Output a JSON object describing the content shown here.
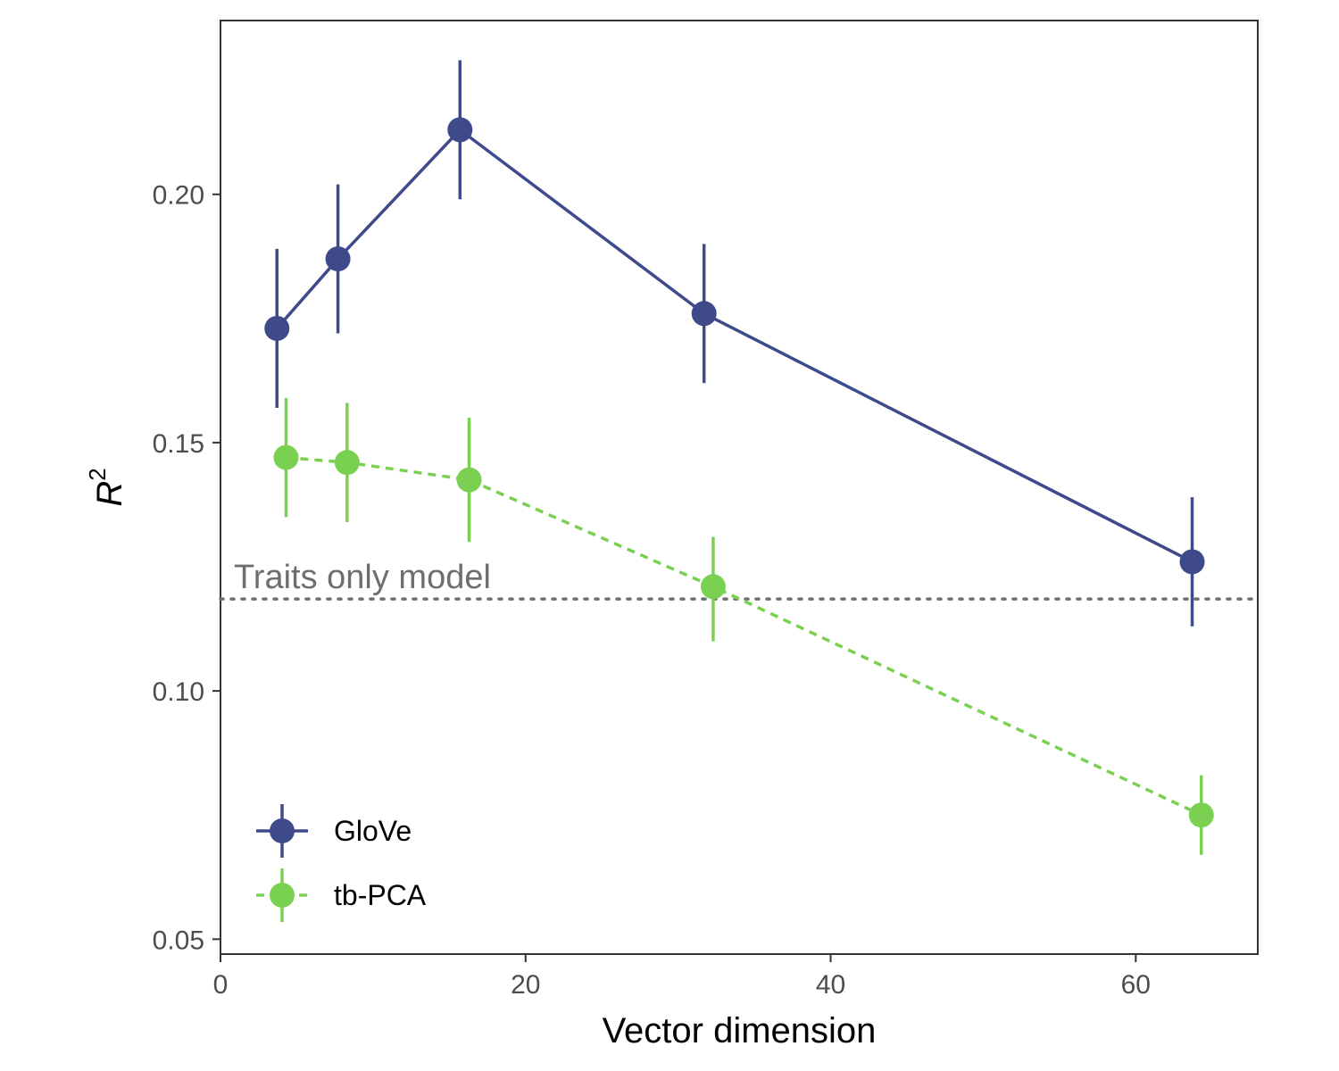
{
  "chart_data": {
    "type": "line",
    "title": "",
    "xlabel": "Vector dimension",
    "ylabel": "R",
    "ylabel_superscript": "2",
    "xlim": [
      0,
      68
    ],
    "ylim": [
      0.047,
      0.235
    ],
    "x_ticks": [
      0,
      20,
      40,
      60
    ],
    "x_tick_labels": [
      "0",
      "20",
      "40",
      "60"
    ],
    "y_ticks": [
      0.05,
      0.1,
      0.15,
      0.2
    ],
    "y_tick_labels": [
      "0.05",
      "0.10",
      "0.15",
      "0.20"
    ],
    "grid": false,
    "legend_position": "bottom-left",
    "series": [
      {
        "name": "GloVe",
        "color": "#3e4a89",
        "line_style": "solid",
        "x": [
          3.7,
          7.7,
          15.7,
          31.7,
          63.7
        ],
        "y": [
          0.173,
          0.187,
          0.213,
          0.176,
          0.126
        ],
        "y_lower": [
          0.157,
          0.172,
          0.199,
          0.162,
          0.113
        ],
        "y_upper": [
          0.189,
          0.202,
          0.227,
          0.19,
          0.139
        ]
      },
      {
        "name": "tb-PCA",
        "color": "#7ad151",
        "line_style": "dashed",
        "x": [
          4.3,
          8.3,
          16.3,
          32.3,
          64.3
        ],
        "y": [
          0.147,
          0.146,
          0.1425,
          0.121,
          0.075
        ],
        "y_lower": [
          0.135,
          0.134,
          0.13,
          0.11,
          0.067
        ],
        "y_upper": [
          0.159,
          0.158,
          0.155,
          0.131,
          0.083
        ]
      }
    ],
    "reference_line": {
      "label": "Traits only model",
      "y": 0.1185,
      "color": "#6e6e6e",
      "line_style": "dotted"
    }
  }
}
